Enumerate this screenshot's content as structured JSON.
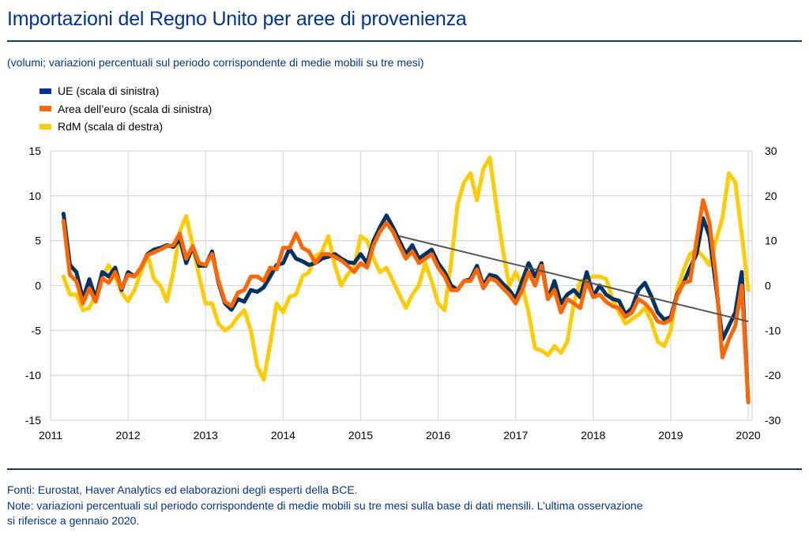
{
  "header": {
    "title": "Importazioni del Regno Unito per aree di provenienza",
    "subtitle": "(volumi; variazioni percentuali sul periodo corrispondente di medie mobili su tre mesi)"
  },
  "legend": [
    {
      "label": "UE (scala di sinistra)",
      "color": "#003366"
    },
    {
      "label": "Area dell’euro (scala di sinistra)",
      "color": "#ff6600"
    },
    {
      "label": "RdM (scala di destra)",
      "color": "#ffcc00"
    }
  ],
  "footer": {
    "sources": "Fonti: Eurostat, Haver Analytics ed elaborazioni degli esperti della BCE.",
    "note_line1": "Note: variazioni percentuali sul periodo corrispondente di medie mobili su tre mesi sulla base di dati mensili. L’ultima osservazione",
    "note_line2": "si riferisce a gennaio 2020."
  },
  "colors": {
    "accent": "#003399",
    "rule": "#17376f",
    "ue": "#003366",
    "euro_area": "#ff6600",
    "rdm": "#ffcc00",
    "trend": "#555555",
    "grid": "#d9d9d9"
  },
  "chart_data": {
    "type": "line",
    "title": "Importazioni del Regno Unito per aree di provenienza",
    "x_start": "2011-03",
    "x_end": "2020-01",
    "frequency": "monthly",
    "xticks": [
      "2011",
      "2012",
      "2013",
      "2014",
      "2015",
      "2016",
      "2017",
      "2018",
      "2019",
      "2020"
    ],
    "xlim": [
      2011,
      2020.05
    ],
    "left_axis": {
      "ylim": [
        -15,
        15
      ],
      "ticks": [
        "15",
        "10",
        "5",
        "0",
        "-5",
        "-10",
        "-15"
      ]
    },
    "right_axis": {
      "ylim": [
        -30,
        30
      ],
      "ticks": [
        "30",
        "20",
        "10",
        "0",
        "-10",
        "-20",
        "-30"
      ]
    },
    "grid": true,
    "legend_position": "top-left",
    "series": [
      {
        "name": "UE (scala di sinistra)",
        "axis": "left",
        "values": [
          8.0,
          2.3,
          1.5,
          -1.5,
          0.7,
          -1.5,
          1.5,
          1.0,
          2.0,
          -0.5,
          1.5,
          1.0,
          2.0,
          3.5,
          4.0,
          4.2,
          4.5,
          4.3,
          5.2,
          2.5,
          4.3,
          2.2,
          2.2,
          3.8,
          0.3,
          -2.0,
          -2.7,
          -1.5,
          -1.8,
          -0.5,
          -0.7,
          -0.2,
          1.0,
          2.3,
          2.5,
          4.1,
          3.0,
          2.7,
          2.3,
          2.5,
          3.0,
          3.2,
          3.5,
          3.0,
          2.6,
          2.5,
          3.5,
          2.5,
          5.0,
          6.5,
          7.8,
          6.5,
          5.0,
          3.5,
          4.5,
          3.0,
          3.5,
          4.0,
          2.5,
          1.5,
          0.0,
          -0.5,
          0.5,
          0.7,
          2.2,
          0.0,
          1.2,
          1.0,
          0.2,
          -0.5,
          -1.5,
          0.5,
          2.5,
          1.0,
          2.5,
          -1.5,
          0.5,
          -2.0,
          -1.0,
          -0.5,
          -1.3,
          1.5,
          -1.2,
          0.0,
          -1.0,
          -1.5,
          -1.7,
          -3.2,
          -2.5,
          -0.5,
          0.3,
          -1.2,
          -3.0,
          -3.8,
          -3.5,
          -1.0,
          0.3,
          2.0,
          3.5,
          7.5,
          5.5,
          0.0,
          -6.0,
          -4.5,
          -3.0,
          1.5,
          -13.0
        ]
      },
      {
        "name": "Area dell’euro (scala di sinistra)",
        "axis": "left",
        "values": [
          7.2,
          1.2,
          0.5,
          -2.0,
          -0.3,
          -1.8,
          0.8,
          0.3,
          1.5,
          -0.3,
          1.2,
          1.0,
          2.0,
          3.4,
          3.7,
          4.0,
          4.4,
          4.5,
          5.8,
          3.0,
          4.4,
          2.5,
          2.3,
          3.5,
          0.5,
          -1.8,
          -2.3,
          -0.8,
          -0.5,
          1.0,
          1.0,
          0.5,
          2.0,
          1.8,
          4.2,
          4.2,
          5.8,
          4.2,
          3.8,
          2.5,
          3.5,
          3.5,
          3.2,
          2.8,
          2.2,
          1.5,
          2.5,
          2.0,
          4.5,
          6.0,
          7.0,
          6.0,
          4.5,
          3.0,
          3.8,
          2.5,
          3.0,
          3.5,
          2.0,
          1.0,
          -0.5,
          -0.5,
          0.5,
          0.5,
          1.8,
          -0.3,
          0.8,
          0.5,
          -0.3,
          -1.0,
          -2.0,
          -0.5,
          1.5,
          0.0,
          2.2,
          -1.5,
          -0.5,
          -3.0,
          -1.5,
          -2.0,
          -2.5,
          0.5,
          -1.3,
          -1.0,
          -1.8,
          -2.3,
          -2.5,
          -3.5,
          -3.0,
          -1.5,
          -2.0,
          -2.8,
          -4.0,
          -4.2,
          -3.8,
          -1.2,
          0.3,
          0.5,
          5.0,
          9.5,
          7.0,
          1.0,
          -8.0,
          -6.0,
          -4.5,
          0.0,
          -13.0
        ]
      },
      {
        "name": "RdM (scala di destra)",
        "axis": "right",
        "values": [
          2.0,
          -2.0,
          -2.0,
          -5.5,
          -5.0,
          -2.0,
          2.0,
          4.5,
          2.0,
          -1.5,
          -3.5,
          -1.0,
          3.0,
          7.0,
          1.5,
          0.0,
          -3.5,
          3.0,
          12.0,
          15.5,
          9.0,
          2.0,
          -4.0,
          -4.0,
          -8.5,
          -10.0,
          -9.0,
          -7.0,
          -5.5,
          -10.0,
          -18.0,
          -21.0,
          -13.0,
          -4.0,
          -6.0,
          -2.5,
          -2.0,
          2.0,
          3.0,
          6.5,
          7.5,
          11.0,
          4.5,
          0.0,
          2.5,
          4.0,
          11.0,
          10.0,
          6.0,
          3.0,
          4.0,
          1.0,
          -2.0,
          -5.0,
          -2.0,
          0.0,
          5.0,
          1.0,
          -4.0,
          -5.5,
          5.0,
          18.0,
          23.0,
          25.0,
          19.0,
          26.0,
          28.5,
          18.0,
          8.0,
          0.0,
          3.0,
          0.0,
          -6.0,
          -14.0,
          -14.5,
          -15.5,
          -13.5,
          -15.0,
          -12.5,
          -4.0,
          1.0,
          1.5,
          2.0,
          2.0,
          1.5,
          -3.0,
          -6.0,
          -8.5,
          -7.5,
          -6.5,
          -5.0,
          -8.0,
          -12.5,
          -13.5,
          -10.0,
          -1.0,
          3.5,
          7.0,
          8.0,
          6.5,
          4.5,
          10.0,
          15.0,
          25.0,
          23.0,
          11.5,
          -1.0
        ]
      },
      {
        "name": "Trend (UE)",
        "axis": "left",
        "type": "trendline",
        "start": {
          "x": "2015-07",
          "value": 5.5
        },
        "end": {
          "x": "2020-01",
          "value": -4.0
        }
      }
    ]
  }
}
